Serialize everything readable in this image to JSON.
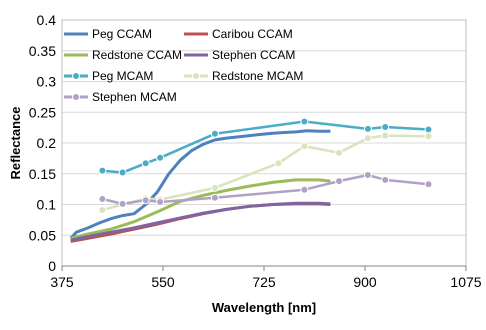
{
  "chart_data": {
    "type": "line",
    "xlabel": "Wavelength [nm]",
    "ylabel": "Reflectance",
    "xlim": [
      375,
      1075
    ],
    "ylim": [
      0,
      0.4
    ],
    "x_ticks": [
      375,
      550,
      725,
      900,
      1075
    ],
    "y_ticks": [
      0,
      0.05,
      0.1,
      0.15,
      0.2,
      0.25,
      0.3,
      0.35,
      0.4
    ],
    "x_tick_labels": [
      "375",
      "550",
      "725",
      "900",
      "1075"
    ],
    "y_tick_labels": [
      "0",
      "0.05",
      "0.1",
      "0.15",
      "0.2",
      "0.25",
      "0.3",
      "0.35",
      "0.4"
    ],
    "grid": "horizontal",
    "legend": "top, inside plot",
    "series": [
      {
        "name": "Peg CCAM",
        "color": "#4f81bd",
        "marker": "none",
        "x": [
          390,
          400,
          420,
          440,
          460,
          480,
          500,
          520,
          540,
          560,
          580,
          600,
          620,
          640,
          660,
          680,
          700,
          720,
          740,
          760,
          780,
          800,
          820,
          840
        ],
        "y": [
          0.045,
          0.055,
          0.062,
          0.07,
          0.077,
          0.082,
          0.085,
          0.1,
          0.12,
          0.15,
          0.172,
          0.188,
          0.198,
          0.205,
          0.208,
          0.21,
          0.212,
          0.214,
          0.216,
          0.217,
          0.218,
          0.22,
          0.219,
          0.219
        ]
      },
      {
        "name": "Caribou CCAM",
        "color": "#c0504d",
        "marker": "none",
        "x": [
          390,
          420,
          460,
          500,
          540,
          580,
          620,
          660,
          700,
          740,
          780,
          820,
          840
        ],
        "y": [
          0.04,
          0.045,
          0.052,
          0.06,
          0.068,
          0.077,
          0.085,
          0.092,
          0.097,
          0.1,
          0.101,
          0.101,
          0.1
        ]
      },
      {
        "name": "Redstone CCAM",
        "color": "#9bbb59",
        "marker": "none",
        "x": [
          390,
          420,
          460,
          500,
          540,
          580,
          620,
          660,
          700,
          740,
          780,
          820,
          840
        ],
        "y": [
          0.045,
          0.052,
          0.06,
          0.072,
          0.088,
          0.105,
          0.115,
          0.123,
          0.13,
          0.136,
          0.14,
          0.14,
          0.138
        ]
      },
      {
        "name": "Stephen CCAM",
        "color": "#8064a2",
        "marker": "none",
        "x": [
          390,
          420,
          460,
          500,
          540,
          580,
          620,
          660,
          700,
          740,
          780,
          820,
          840
        ],
        "y": [
          0.042,
          0.048,
          0.055,
          0.062,
          0.07,
          0.078,
          0.086,
          0.092,
          0.097,
          0.1,
          0.102,
          0.102,
          0.101
        ]
      },
      {
        "name": "Peg MCAM",
        "color": "#4bacc6",
        "marker": "circle",
        "x": [
          445,
          480,
          520,
          545,
          640,
          795,
          905,
          935,
          1010
        ],
        "y": [
          0.155,
          0.152,
          0.167,
          0.176,
          0.215,
          0.235,
          0.223,
          0.226,
          0.222
        ]
      },
      {
        "name": "Redstone MCAM",
        "color": "#d7e4bd",
        "marker": "circle",
        "x": [
          445,
          520,
          545,
          640,
          750,
          795,
          855,
          905,
          935,
          1010
        ],
        "y": [
          0.091,
          0.11,
          0.108,
          0.127,
          0.167,
          0.195,
          0.184,
          0.208,
          0.212,
          0.211
        ]
      },
      {
        "name": "Stephen MCAM",
        "color": "#b2a1c7",
        "marker": "circle",
        "x": [
          445,
          480,
          520,
          545,
          640,
          795,
          855,
          905,
          935,
          1010
        ],
        "y": [
          0.109,
          0.101,
          0.107,
          0.104,
          0.111,
          0.124,
          0.138,
          0.148,
          0.14,
          0.133
        ]
      }
    ]
  }
}
